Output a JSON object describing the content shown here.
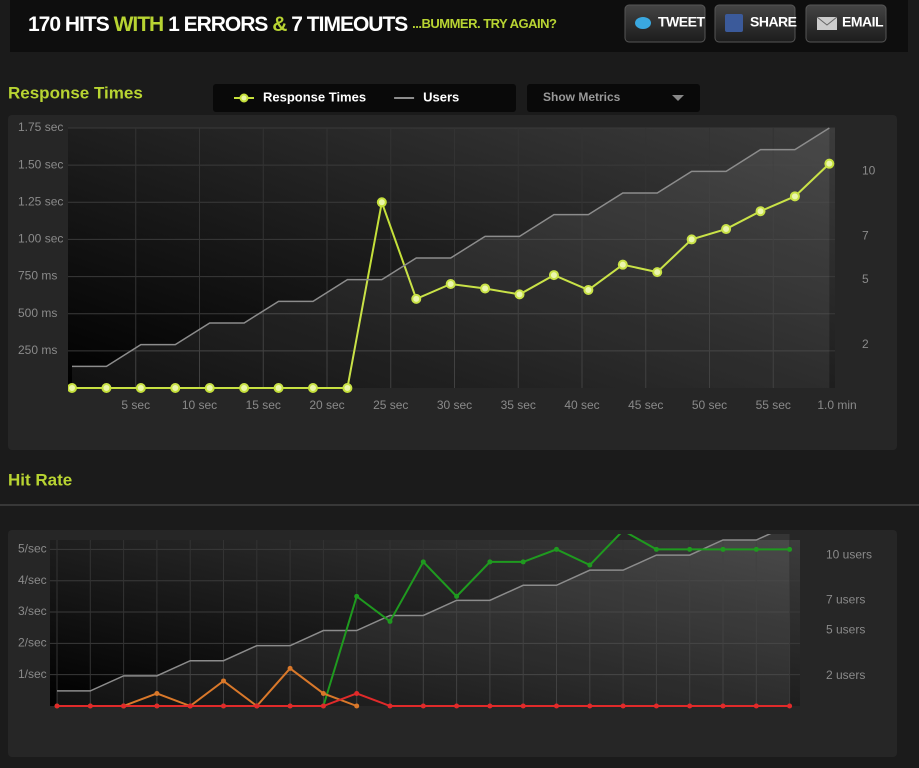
{
  "header": {
    "summary": [
      "170 HITS",
      "WITH",
      "1 ERRORS",
      "&",
      "7 TIMEOUTS"
    ],
    "tagline": "...BUMMER. TRY AGAIN?"
  },
  "buttons": [
    "TWEET",
    "SHARE",
    "EMAIL"
  ],
  "metrics_menu": "Show Metrics",
  "chart_data": [
    {
      "type": "line",
      "title": "Response Times",
      "x": [
        0,
        2.7,
        5.4,
        8.1,
        10.8,
        13.5,
        16.2,
        18.9,
        21.6,
        24.3,
        27,
        29.7,
        32.4,
        35.1,
        37.8,
        40.5,
        43.2,
        45.9,
        48.6,
        51.3,
        54,
        56.7,
        59.4
      ],
      "xlim": [
        0,
        60
      ],
      "xticks": [
        {
          "value": 5,
          "label": "5 sec"
        },
        {
          "value": 10,
          "label": "10 sec"
        },
        {
          "value": 15,
          "label": "15 sec"
        },
        {
          "value": 20,
          "label": "20 sec"
        },
        {
          "value": 25,
          "label": "25 sec"
        },
        {
          "value": 30,
          "label": "30 sec"
        },
        {
          "value": 35,
          "label": "35 sec"
        },
        {
          "value": 40,
          "label": "40 sec"
        },
        {
          "value": 45,
          "label": "45 sec"
        },
        {
          "value": 50,
          "label": "50 sec"
        },
        {
          "value": 55,
          "label": "55 sec"
        },
        {
          "value": 60,
          "label": "1.0 min"
        }
      ],
      "ylim": [
        0,
        1750
      ],
      "yticks": [
        {
          "value": 250,
          "label": "250 ms"
        },
        {
          "value": 500,
          "label": "500 ms"
        },
        {
          "value": 750,
          "label": "750 ms"
        },
        {
          "value": 1000,
          "label": "1.00 sec"
        },
        {
          "value": 1250,
          "label": "1.25 sec"
        },
        {
          "value": 1500,
          "label": "1.50 sec"
        },
        {
          "value": 1750,
          "label": "1.75 sec"
        }
      ],
      "y2lim": [
        0,
        12
      ],
      "y2ticks": [
        2,
        5,
        7,
        10
      ],
      "grid": true,
      "legend": "top",
      "series": [
        {
          "name": "Response Times",
          "color": "#c5e03a",
          "values": [
            0,
            0,
            0,
            0,
            0,
            0,
            0,
            0,
            0,
            1250,
            600,
            700,
            670,
            630,
            760,
            660,
            830,
            780,
            1000,
            1070,
            1190,
            1290,
            1510
          ]
        },
        {
          "name": "Users",
          "color": "#8c8c8c",
          "axis": "y2",
          "values": [
            1,
            1,
            2,
            2,
            3,
            3,
            4,
            4,
            5,
            5,
            6,
            6,
            7,
            7,
            8,
            8,
            9,
            9,
            10,
            10,
            11,
            11,
            12
          ]
        }
      ]
    },
    {
      "type": "line",
      "title": "Hit Rate",
      "x": [
        0,
        2.7,
        5.4,
        8.1,
        10.8,
        13.5,
        16.2,
        18.9,
        21.6,
        24.3,
        27,
        29.7,
        32.4,
        35.1,
        37.8,
        40.5,
        43.2,
        45.9,
        48.6,
        51.3,
        54,
        56.7,
        59.4
      ],
      "xlim": [
        0,
        60
      ],
      "ylim": [
        0,
        5.3
      ],
      "yticks": [
        {
          "value": 1,
          "label": "1/sec"
        },
        {
          "value": 2,
          "label": "2/sec"
        },
        {
          "value": 3,
          "label": "3/sec"
        },
        {
          "value": 4,
          "label": "4/sec"
        },
        {
          "value": 5,
          "label": "5/sec"
        }
      ],
      "y2lim": [
        0,
        11
      ],
      "y2ticks": [
        {
          "value": 2,
          "label": "2 users"
        },
        {
          "value": 5,
          "label": "5 users"
        },
        {
          "value": 7,
          "label": "7 users"
        },
        {
          "value": 10,
          "label": "10 users"
        }
      ],
      "grid": true,
      "series": [
        {
          "color": "#8c8c8c",
          "axis": "y2",
          "values": [
            1,
            1,
            2,
            2,
            3,
            3,
            4,
            4,
            5,
            5,
            6,
            6,
            7,
            7,
            8,
            8,
            9,
            9,
            10,
            10,
            11,
            11,
            12
          ]
        },
        {
          "color": "#1f9a1f",
          "values": [
            0,
            0,
            0,
            0,
            0,
            0,
            0,
            0,
            0,
            3.5,
            2.7,
            4.6,
            3.5,
            4.6,
            4.6,
            5.0,
            4.5,
            5.6,
            5.0,
            5.0,
            5.0,
            5.0,
            5.0
          ]
        },
        {
          "color": "#d9782a",
          "values": [
            null,
            null,
            0,
            0.4,
            0,
            0.8,
            0,
            1.2,
            0.4,
            0,
            null,
            null,
            null,
            null,
            null,
            null,
            null,
            null,
            null,
            null,
            null,
            null,
            null
          ]
        },
        {
          "color": "#e02a2a",
          "values": [
            0,
            0,
            0,
            0,
            0,
            0,
            0,
            0,
            0,
            0.4,
            0,
            0,
            0,
            0,
            0,
            0,
            0,
            0,
            0,
            0,
            0,
            0,
            0
          ]
        }
      ]
    }
  ]
}
